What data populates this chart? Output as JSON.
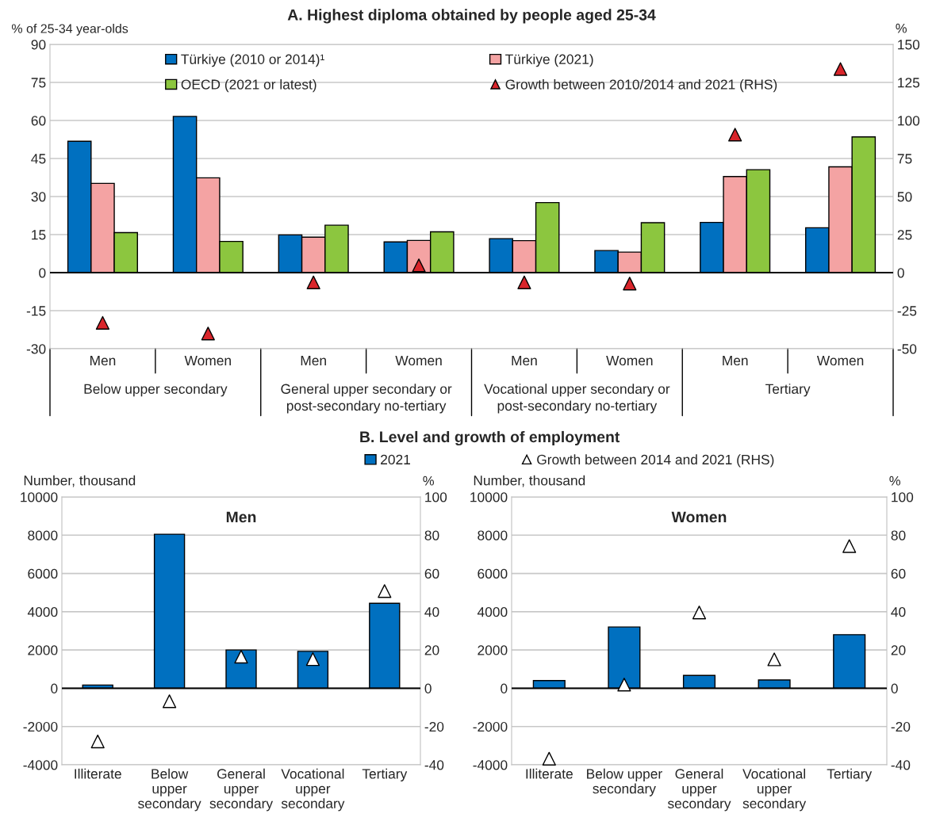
{
  "chart_data": [
    {
      "type": "bar",
      "title": "A. Highest diploma obtained by people aged 25-34",
      "ylabel": "% of 25-34 year-olds",
      "y2label": "%",
      "categories": [
        "Men",
        "Women",
        "Men",
        "Women",
        "Men",
        "Women",
        "Men",
        "Women"
      ],
      "annotations": [
        "Below upper secondary",
        "General upper secondary or\npost-secondary no-tertiary",
        "Vocational upper secondary or\npost-secondary no-tertiary",
        "Tertiary"
      ],
      "series": [
        {
          "name": "Türkiye (2010 or 2014)¹",
          "color": "#0070c0",
          "values": [
            51.8,
            61.6,
            14.9,
            12.1,
            13.4,
            8.7,
            19.8,
            17.7
          ]
        },
        {
          "name": "Türkiye (2021)",
          "color": "#f4a3a3",
          "values": [
            35.2,
            37.4,
            14.0,
            12.7,
            12.6,
            8.1,
            37.9,
            41.7
          ]
        },
        {
          "name": "OECD (2021 or latest)",
          "color": "#8cc63f",
          "values": [
            15.8,
            12.3,
            18.7,
            16.1,
            27.6,
            19.7,
            40.6,
            53.5
          ]
        },
        {
          "name": "Growth between 2010/2014 and 2021 (RHS)",
          "type": "scatter",
          "axis": "y2",
          "marker": "triangle",
          "color": "#d9252b",
          "values": [
            -33,
            -40,
            -6.4,
            4.8,
            -6.4,
            -7.2,
            90.7,
            133.8
          ]
        }
      ],
      "ylim": [
        -30,
        90
      ],
      "yticks": [
        -30,
        -15,
        0,
        15,
        30,
        45,
        60,
        75,
        90
      ],
      "y2lim": [
        -50,
        150
      ],
      "y2ticks": [
        -50,
        -25,
        0,
        25,
        50,
        75,
        100,
        125,
        150
      ],
      "grid": "y",
      "legend": "top"
    },
    {
      "type": "bar",
      "title": "B. Level and growth of employment",
      "subtitle": "Men",
      "ylabel": "Number, thousand",
      "y2label": "%",
      "categories": [
        "Illiterate",
        "Below\nupper\nsecondary",
        "General\nupper\nsecondary",
        "Vocational\nupper\nsecondary",
        "Tertiary"
      ],
      "series": [
        {
          "name": "2021",
          "color": "#0070c0",
          "values": [
            170,
            8050,
            2000,
            1930,
            4440
          ]
        },
        {
          "type": "scatter",
          "axis": "y2",
          "marker": "triangle",
          "color": "#ffffff",
          "values": [
            -27.8,
            -6.8,
            16.5,
            15.2,
            50.8
          ]
        }
      ],
      "ylim": [
        -4000,
        10000
      ],
      "yticks": [
        -4000,
        -2000,
        0,
        2000,
        4000,
        6000,
        8000,
        10000
      ],
      "y2lim": [
        -40,
        100
      ],
      "y2ticks": [
        -40,
        -20,
        0,
        20,
        40,
        60,
        80,
        100
      ],
      "grid": "y",
      "legend": "top right"
    },
    {
      "type": "bar",
      "subtitle": "Women",
      "ylabel": "Number, thousand",
      "y2label": "%",
      "categories": [
        "Illiterate",
        "Below upper\nsecondary",
        "General\nupper\nsecondary",
        "Vocational\nupper\nsecondary",
        "Tertiary"
      ],
      "series": [
        {
          "color": "#0070c0",
          "values": [
            400,
            3200,
            670,
            430,
            2800
          ]
        },
        {
          "name": "Growth between 2014 and 2021 (RHS)",
          "type": "scatter",
          "axis": "y2",
          "marker": "triangle",
          "color": "#ffffff",
          "values": [
            -36.8,
            1.9,
            39.6,
            15.1,
            74.3
          ]
        }
      ],
      "ylim": [
        -4000,
        10000
      ],
      "yticks": [
        -4000,
        -2000,
        0,
        2000,
        4000,
        6000,
        8000,
        10000
      ],
      "y2lim": [
        -40,
        100
      ],
      "y2ticks": [
        -40,
        -20,
        0,
        20,
        40,
        60,
        80,
        100
      ],
      "grid": "y",
      "legend": "top left"
    }
  ]
}
